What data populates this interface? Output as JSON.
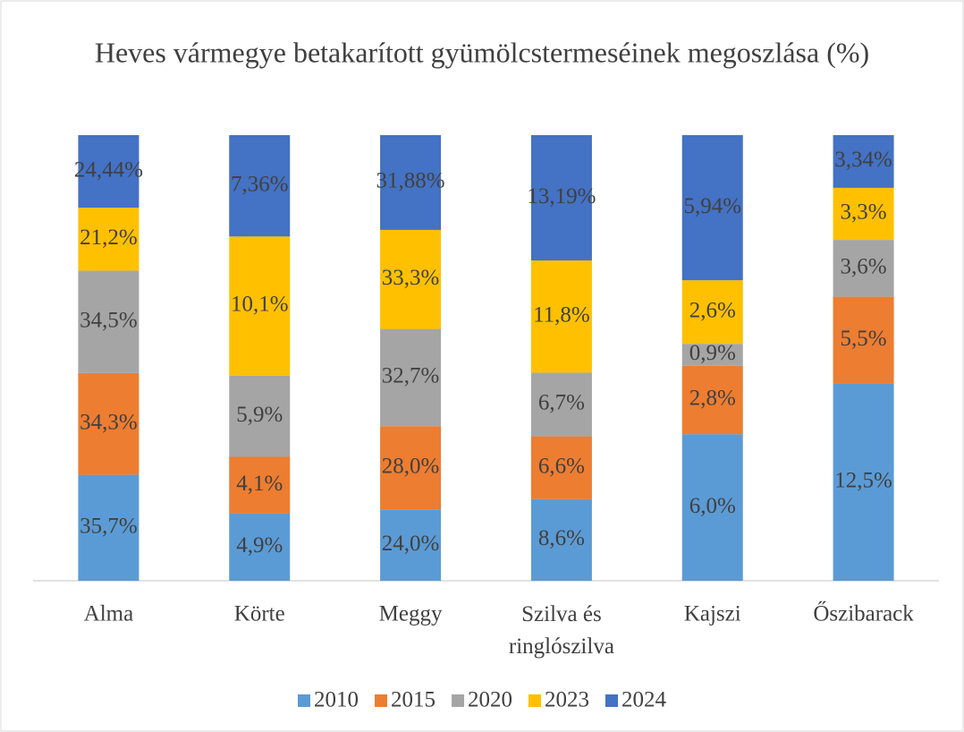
{
  "chart_data": {
    "type": "bar",
    "stack": "percent",
    "title": "Heves vármegye betakarított gyümölcstermeséinek megoszlása (%)",
    "categories": [
      "Alma",
      "Körte",
      "Meggy",
      "Szilva és ringlószilva",
      "Kajszi",
      "Őszibarack"
    ],
    "series": [
      {
        "name": "2010",
        "color": "#5b9bd5",
        "values": [
          35.7,
          4.9,
          24.0,
          8.6,
          6.0,
          12.5
        ],
        "value_labels": [
          "35,7%",
          "4,9%",
          "24,0%",
          "8,6%",
          "6,0%",
          "12,5%"
        ]
      },
      {
        "name": "2015",
        "color": "#ed7d31",
        "values": [
          34.3,
          4.1,
          28.0,
          6.6,
          2.8,
          5.5
        ],
        "value_labels": [
          "34,3%",
          "4,1%",
          "28,0%",
          "6,6%",
          "2,8%",
          "5,5%"
        ]
      },
      {
        "name": "2020",
        "color": "#a5a5a5",
        "values": [
          34.5,
          5.9,
          32.7,
          6.7,
          0.9,
          3.6
        ],
        "value_labels": [
          "34,5%",
          "5,9%",
          "32,7%",
          "6,7%",
          "0,9%",
          "3,6%"
        ]
      },
      {
        "name": "2023",
        "color": "#ffc000",
        "values": [
          21.2,
          10.1,
          33.3,
          11.8,
          2.6,
          3.3
        ],
        "value_labels": [
          "21,2%",
          "10,1%",
          "33,3%",
          "11,8%",
          "2,6%",
          "3,3%"
        ]
      },
      {
        "name": "2024",
        "color": "#4472c4",
        "values": [
          24.44,
          7.36,
          31.88,
          13.19,
          5.94,
          3.34
        ],
        "value_labels": [
          "24,44%",
          "7,36%",
          "31,88%",
          "13,19%",
          "5,94%",
          "3,34%"
        ]
      }
    ],
    "legend": "bottom"
  }
}
